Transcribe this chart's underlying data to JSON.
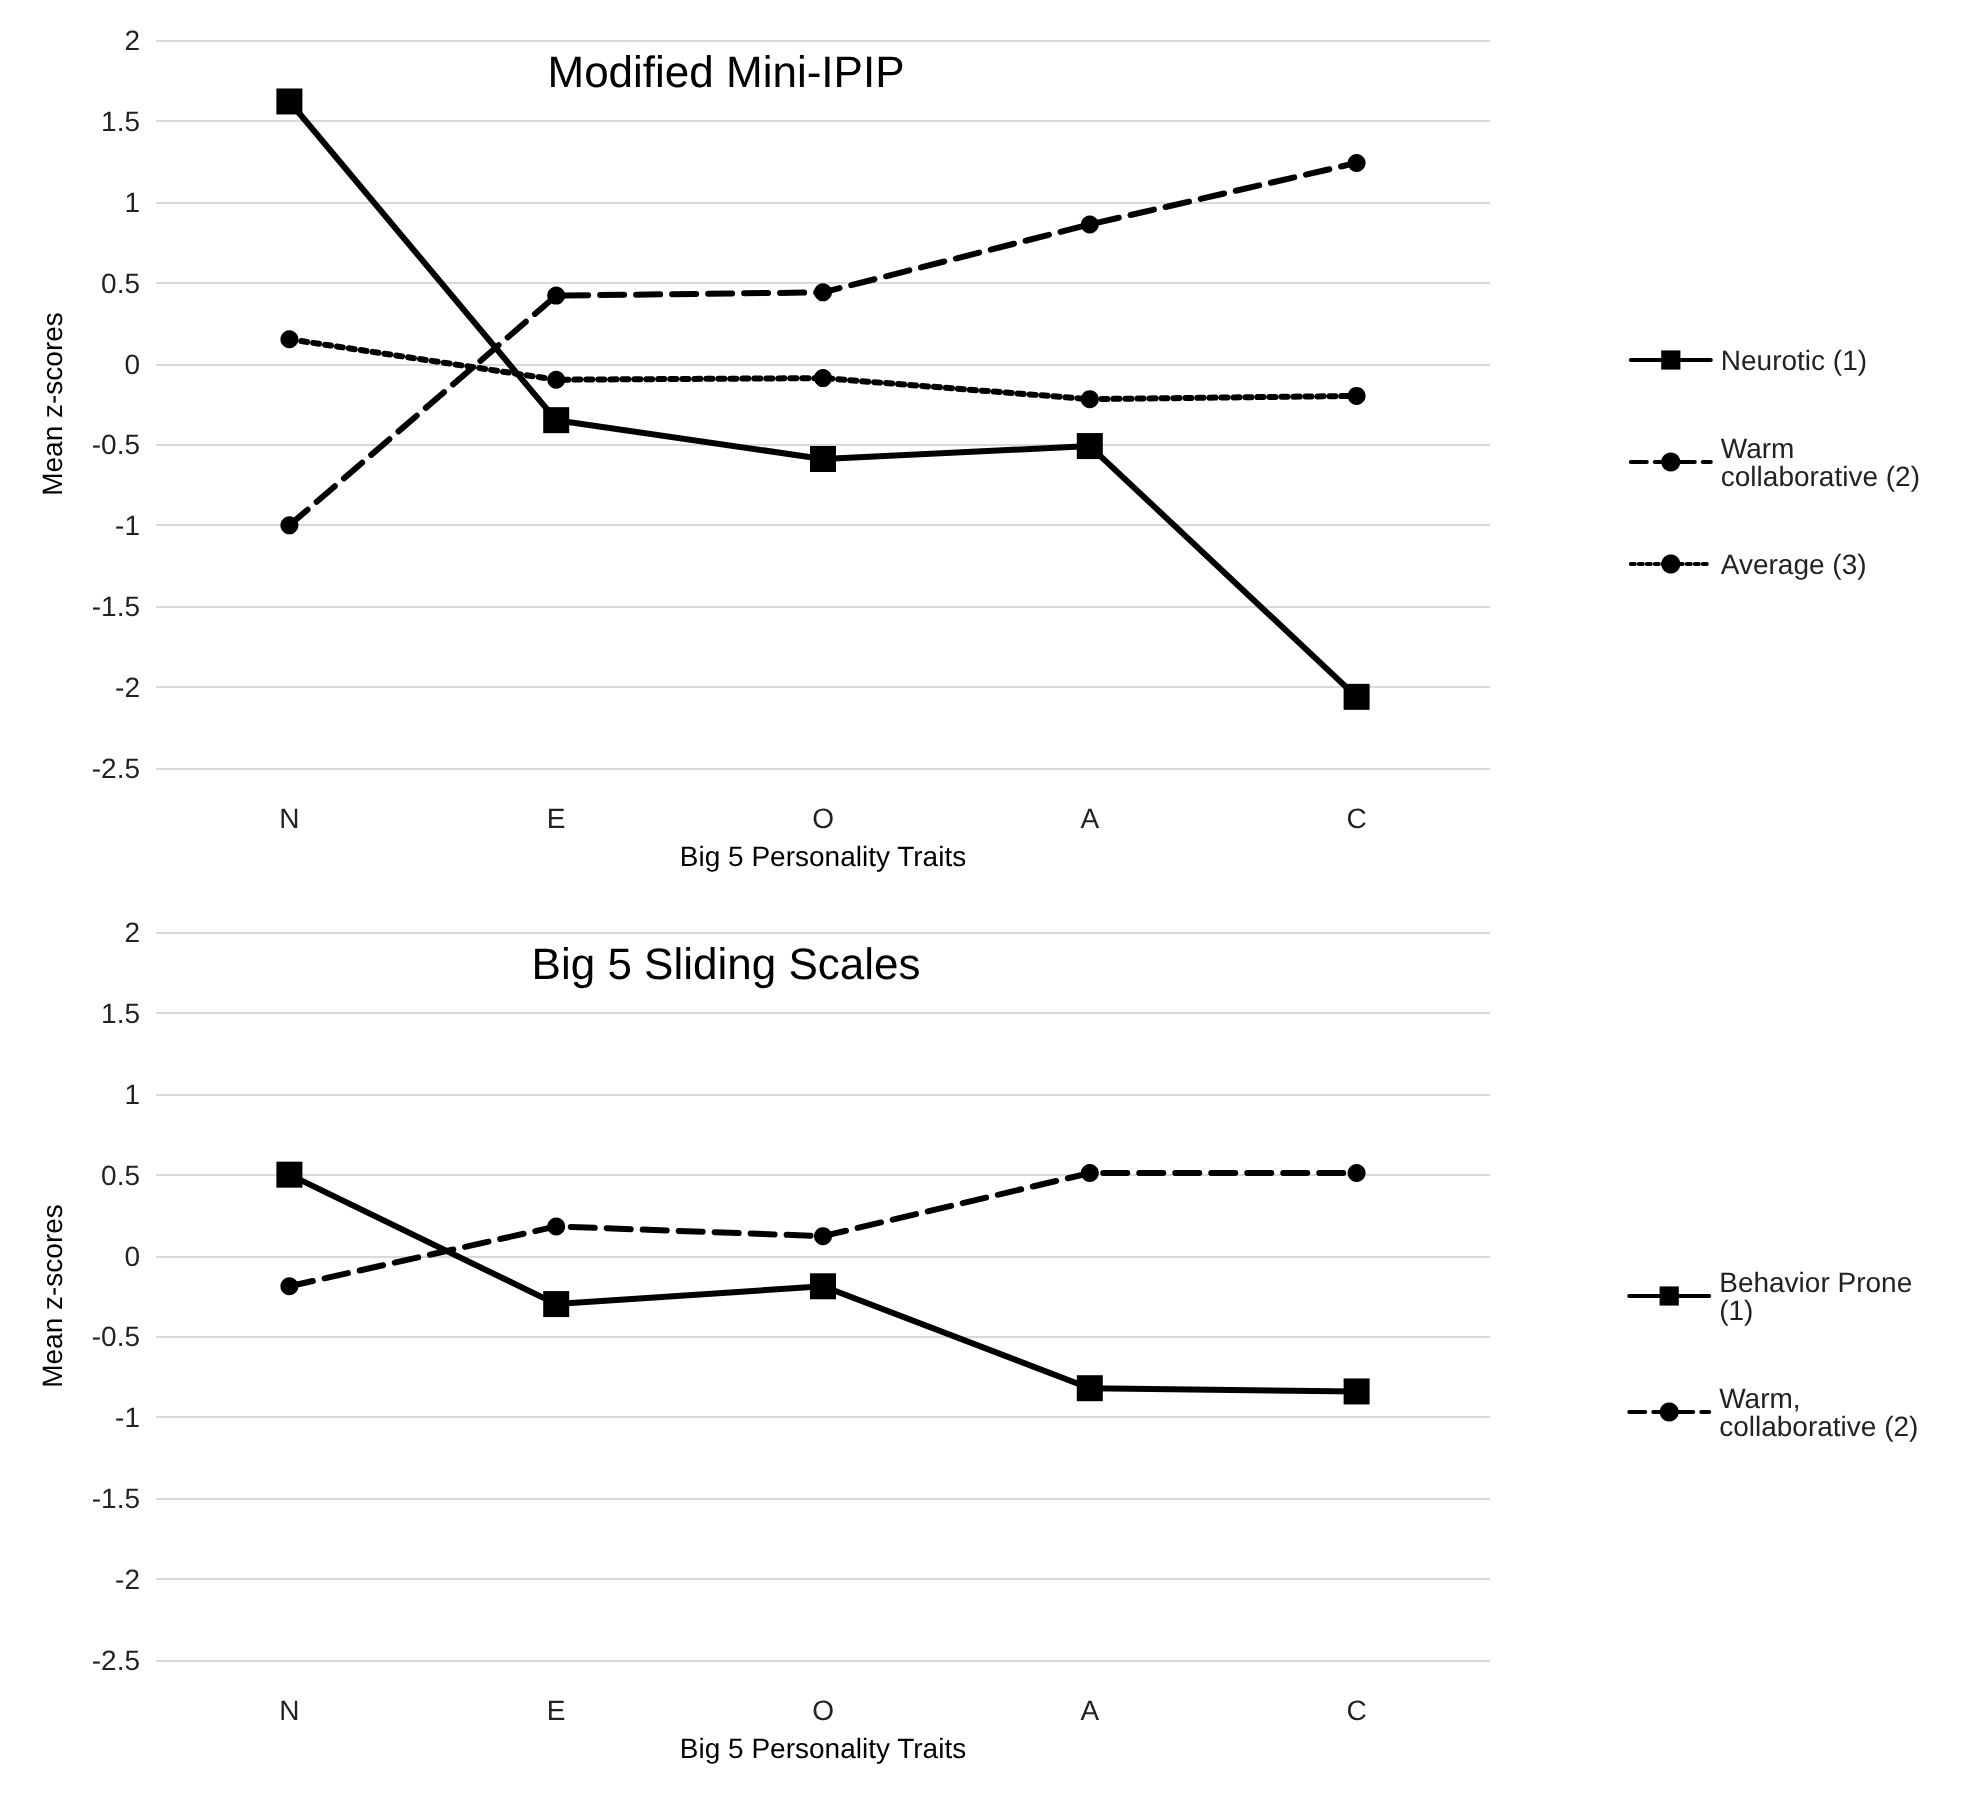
{
  "chart_data": [
    {
      "type": "line",
      "title": "Modified Mini-IPIP",
      "xlabel": "Big 5 Personality Traits",
      "ylabel": "Mean z-scores",
      "categories": [
        "N",
        "E",
        "O",
        "A",
        "C"
      ],
      "ylim": [
        -2.5,
        2
      ],
      "yticks": [
        -2.5,
        -2,
        -1.5,
        -1,
        -0.5,
        0,
        0.5,
        1,
        1.5,
        2
      ],
      "grid": "y",
      "legend": "right",
      "series": [
        {
          "name": "Neurotic (1)",
          "color": "#000000",
          "marker": "square",
          "line_style": "solid",
          "values": [
            1.62,
            -0.35,
            -0.59,
            -0.51,
            -2.06
          ]
        },
        {
          "name": "Warm collaborative (2)",
          "color": "#000000",
          "marker": "circle",
          "line_style": "dashed",
          "values": [
            -1.0,
            0.42,
            0.44,
            0.86,
            1.24
          ]
        },
        {
          "name": "Average (3)",
          "color": "#000000",
          "marker": "circle",
          "line_style": "dotted",
          "values": [
            0.15,
            -0.1,
            -0.09,
            -0.22,
            -0.2
          ]
        }
      ]
    },
    {
      "type": "line",
      "title": "Big 5 Sliding Scales",
      "xlabel": "Big 5 Personality Traits",
      "ylabel": "Mean z-scores",
      "categories": [
        "N",
        "E",
        "O",
        "A",
        "C"
      ],
      "ylim": [
        -2.5,
        2
      ],
      "yticks": [
        -2.5,
        -2,
        -1.5,
        -1,
        -0.5,
        0,
        0.5,
        1,
        1.5,
        2
      ],
      "grid": "y",
      "legend": "right",
      "series": [
        {
          "name": "Behavior Prone (1)",
          "color": "#000000",
          "marker": "square",
          "line_style": "solid",
          "values": [
            0.5,
            -0.3,
            -0.19,
            -0.82,
            -0.84
          ]
        },
        {
          "name": "Warm, collaborative (2)",
          "color": "#000000",
          "marker": "circle",
          "line_style": "dashed",
          "values": [
            -0.19,
            0.18,
            0.12,
            0.51,
            0.51
          ]
        }
      ]
    }
  ]
}
